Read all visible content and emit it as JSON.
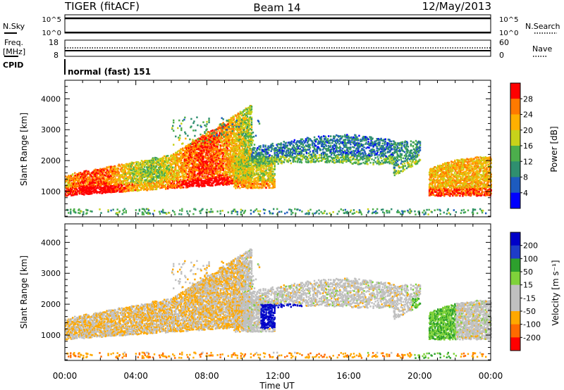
{
  "header": {
    "left": "TIGER (fitACF)",
    "center": "Beam 14",
    "right": "12/May/2013"
  },
  "panels": {
    "nsky": {
      "label": "N.Sky",
      "ticks_left": [
        "10^5",
        "10^0"
      ],
      "right_label": "N.Search",
      "ticks_right": [
        "10^5",
        "10^0"
      ]
    },
    "freq": {
      "label_line1": "Freq.",
      "label_line2": "[MHz]",
      "ticks_left": [
        "18",
        "8"
      ],
      "right_label": "Nave",
      "ticks_right": [
        "60",
        "0"
      ]
    },
    "cpid": {
      "label": "CPID",
      "mode_text": "normal (fast) 151"
    }
  },
  "colors": {
    "power": [
      "#0000ff",
      "#1d5bbf",
      "#2f8f6f",
      "#4cae4c",
      "#c8d21a",
      "#ffb000",
      "#ff7a00",
      "#ff0000"
    ],
    "velocity": [
      "#ff0000",
      "#ff6a00",
      "#ffa800",
      "#c0c0c0",
      "#c0c0c0",
      "#7fd23a",
      "#2da02d",
      "#1e3cc8",
      "#0000c8"
    ]
  },
  "chart_data": [
    {
      "type": "heatmap",
      "name": "power",
      "xlabel": "",
      "ylabel": "Slant Range [km]",
      "xlim": [
        "00:00",
        "24:00"
      ],
      "ylim": [
        180,
        4600
      ],
      "yticks": [
        1000,
        2000,
        3000,
        4000
      ],
      "xticks": [
        "00:00",
        "04:00",
        "08:00",
        "12:00",
        "16:00",
        "20:00",
        "00:00"
      ],
      "colorbar": {
        "label": "Power [dB]",
        "ticks": [
          4,
          8,
          12,
          16,
          20,
          24,
          28
        ]
      }
    },
    {
      "type": "heatmap",
      "name": "velocity",
      "xlabel": "Time UT",
      "ylabel": "Slant Range [km]",
      "xlim": [
        "00:00",
        "24:00"
      ],
      "ylim": [
        180,
        4600
      ],
      "yticks": [
        1000,
        2000,
        3000,
        4000
      ],
      "xticks": [
        "00:00",
        "04:00",
        "08:00",
        "12:00",
        "16:00",
        "20:00",
        "00:00"
      ],
      "colorbar": {
        "label": "Velocity [m s⁻¹]",
        "ticks": [
          200,
          100,
          50,
          15,
          -15,
          -50,
          -100,
          -200
        ]
      }
    }
  ]
}
